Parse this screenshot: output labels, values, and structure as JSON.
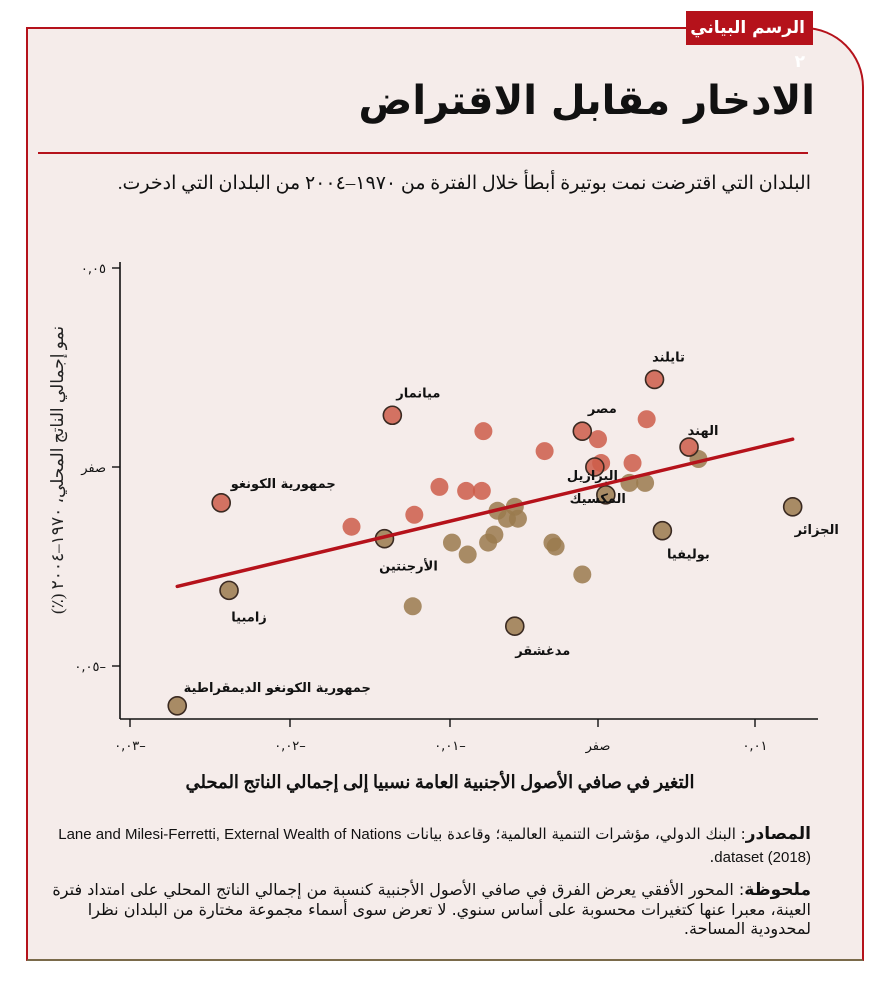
{
  "badge": {
    "label": "الرسم البياني ٢"
  },
  "title": "الادخار مقابل الاقتراض",
  "subtitle": "البلدان التي اقترضت نمت بوتيرة أبطأ خلال الفترة من ١٩٧٠–٢٠٠٤ من البلدان التي ادخرت.",
  "axes": {
    "ylabel": "نمو إجمالي الناتج المحلي، ١٩٧٠–٢٠٠٤ (٪)",
    "xlabel": "التغير في صافي الأصول الأجنبية العامة نسبيا إلى إجمالي الناتج المحلي",
    "yticks": [
      "٠,٠٥",
      "صفر",
      "٠,٠٥–"
    ],
    "xticks": [
      "٠,٠٣–",
      "٠,٠٢–",
      "٠,٠١–",
      "صفر",
      "٠,٠١"
    ]
  },
  "sources": {
    "label": "المصادر",
    "text_ar": ": البنك الدولي، مؤشرات التنمية العالمية؛ وقاعدة بيانات ",
    "text_en": "Lane and Milesi-Ferretti, External Wealth of Nations dataset (2018)",
    "trail": "."
  },
  "note": {
    "label": "ملحوظة",
    "text": ": المحور الأفقي يعرض الفرق في صافي الأصول الأجنبية كنسبة من إجمالي الناتج المحلي على امتداد فترة العينة، معبرا عنها كتغيرات محسوبة على أساس سنوي. لا تعرض سوى أسماء مجموعة مختارة من البلدان نظرا لمحدودية المساحة."
  },
  "colors": {
    "accent": "#b5121b",
    "background": "#f5ecea",
    "point_red": "#cd5d4a",
    "point_olive": "#9a7a4e",
    "trend": "#b5121b"
  },
  "chart_data": {
    "type": "scatter",
    "title": "الادخار مقابل الاقتراض",
    "xlabel": "التغير في صافي الأصول الأجنبية العامة نسبيا إلى إجمالي الناتج المحلي",
    "ylabel": "نمو إجمالي الناتج المحلي، ١٩٧٠–٢٠٠٤ (٪)",
    "xlim": [
      -0.031,
      0.013
    ],
    "ylim": [
      -0.063,
      0.055
    ],
    "xticks": [
      -0.03,
      -0.02,
      -0.01,
      0,
      0.01
    ],
    "yticks": [
      -0.05,
      0,
      0.05
    ],
    "grid": false,
    "trendline": {
      "x": [
        -0.0268,
        0.0124
      ],
      "y": [
        -0.03,
        0.007
      ]
    },
    "labeled_points": [
      {
        "name": "تايلند",
        "x": 0.0036,
        "y": 0.022
      },
      {
        "name": "ميانمار",
        "x": -0.0131,
        "y": 0.013
      },
      {
        "name": "مصر",
        "x": -0.001,
        "y": 0.009
      },
      {
        "name": "الهند",
        "x": 0.0058,
        "y": 0.005
      },
      {
        "name": "البرازيل",
        "x": -0.0002,
        "y": 0.0
      },
      {
        "name": "المكسيك",
        "x": 0.0005,
        "y": -0.007
      },
      {
        "name": "جمهورية الكونغو",
        "x": -0.024,
        "y": -0.009
      },
      {
        "name": "بوليفيا",
        "x": 0.0041,
        "y": -0.016
      },
      {
        "name": "الجزائر",
        "x": 0.0124,
        "y": -0.01
      },
      {
        "name": "الأرجنتين",
        "x": -0.0136,
        "y": -0.018
      },
      {
        "name": "زامبيا",
        "x": -0.0235,
        "y": -0.031
      },
      {
        "name": "مدغشقر",
        "x": -0.0053,
        "y": -0.04
      },
      {
        "name": "جمهورية الكونغو الديمقراطية",
        "x": -0.0268,
        "y": -0.06
      }
    ],
    "unlabeled_points": [
      {
        "x": 0.0031,
        "y": 0.012
      },
      {
        "x": -0.0073,
        "y": 0.009
      },
      {
        "x": -0.0034,
        "y": 0.004
      },
      {
        "x": 0.0,
        "y": 0.007
      },
      {
        "x": 0.0002,
        "y": 0.001
      },
      {
        "x": 0.0022,
        "y": 0.001
      },
      {
        "x": 0.0064,
        "y": 0.002
      },
      {
        "x": 0.002,
        "y": -0.004
      },
      {
        "x": 0.003,
        "y": -0.004
      },
      {
        "x": -0.0101,
        "y": -0.005
      },
      {
        "x": -0.0084,
        "y": -0.006
      },
      {
        "x": -0.0074,
        "y": -0.006
      },
      {
        "x": -0.0064,
        "y": -0.011
      },
      {
        "x": -0.0053,
        "y": -0.01
      },
      {
        "x": -0.0058,
        "y": -0.013
      },
      {
        "x": -0.0051,
        "y": -0.013
      },
      {
        "x": -0.0117,
        "y": -0.012
      },
      {
        "x": -0.0157,
        "y": -0.015
      },
      {
        "x": -0.0066,
        "y": -0.017
      },
      {
        "x": -0.007,
        "y": -0.019
      },
      {
        "x": -0.0093,
        "y": -0.019
      },
      {
        "x": -0.0083,
        "y": -0.022
      },
      {
        "x": -0.0029,
        "y": -0.019
      },
      {
        "x": -0.0027,
        "y": -0.02
      },
      {
        "x": -0.001,
        "y": -0.027
      },
      {
        "x": -0.0118,
        "y": -0.035
      }
    ]
  }
}
